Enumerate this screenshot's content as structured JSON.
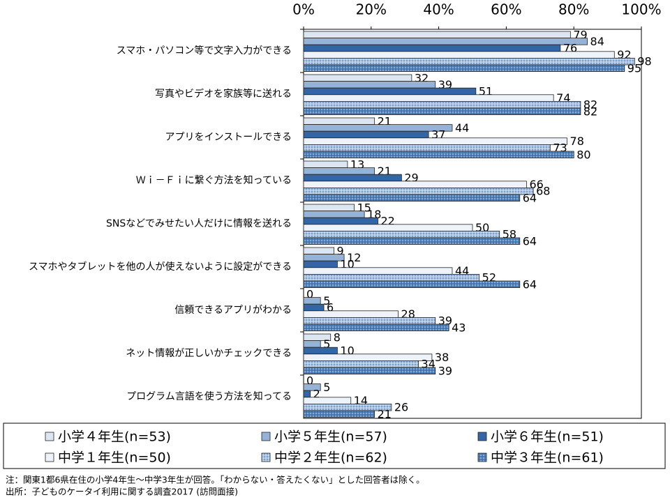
{
  "chart_data": {
    "type": "hbar",
    "categories": [
      "スマホ・パソコン等で文字入力ができる",
      "写真やビデオを家族等に送れる",
      "アプリをインストールできる",
      "Ｗｉ－Ｆｉに繋ぐ方法を知っている",
      "SNSなどでみせたい人だけに情報を送れる",
      "スマホやタブレットを他の人が使えないように設定ができる",
      "信頼できるアプリがわかる",
      "ネット情報が正しいかチェックできる",
      "プログラム言語を使う方法を知ってる"
    ],
    "series": [
      {
        "name": "小学４年生(n=53)",
        "color": "#dce6f2",
        "pattern": false,
        "values": [
          79,
          32,
          21,
          13,
          15,
          9,
          0,
          8,
          0
        ]
      },
      {
        "name": "小学５年生(n=57)",
        "color": "#95b3d7",
        "pattern": false,
        "values": [
          84,
          39,
          44,
          21,
          18,
          12,
          5,
          5,
          5
        ]
      },
      {
        "name": "小学６年生(n=51)",
        "color": "#3465a4",
        "pattern": false,
        "values": [
          76,
          51,
          37,
          29,
          22,
          10,
          6,
          10,
          2
        ]
      },
      {
        "name": "中学１年生(n=50)",
        "color": "#eef3f9",
        "pattern": false,
        "values": [
          92,
          74,
          78,
          66,
          50,
          44,
          28,
          38,
          14
        ]
      },
      {
        "name": "中学２年生(n=62)",
        "color": "#a9c4e4",
        "pattern": true,
        "values": [
          98,
          82,
          73,
          68,
          58,
          52,
          39,
          34,
          26
        ]
      },
      {
        "name": "中学３年生(n=61)",
        "color": "#4f81bd",
        "pattern": true,
        "values": [
          95,
          82,
          80,
          64,
          64,
          64,
          43,
          39,
          21
        ]
      }
    ],
    "xlim": [
      0,
      100
    ],
    "xticks": [
      {
        "value": 0,
        "label": "0%"
      },
      {
        "value": 20,
        "label": "20%"
      },
      {
        "value": 40,
        "label": "40%"
      },
      {
        "value": 60,
        "label": "60%"
      },
      {
        "value": 80,
        "label": "80%"
      },
      {
        "value": 100,
        "label": "100%"
      }
    ],
    "note": "注：関東1都6県在住の小学4年生～中学3年生が回答。「わからない・答えたくない」とした回答者は除く。",
    "source": "出所：子どものケータイ利用に関する調査2017 (訪問面接)"
  }
}
